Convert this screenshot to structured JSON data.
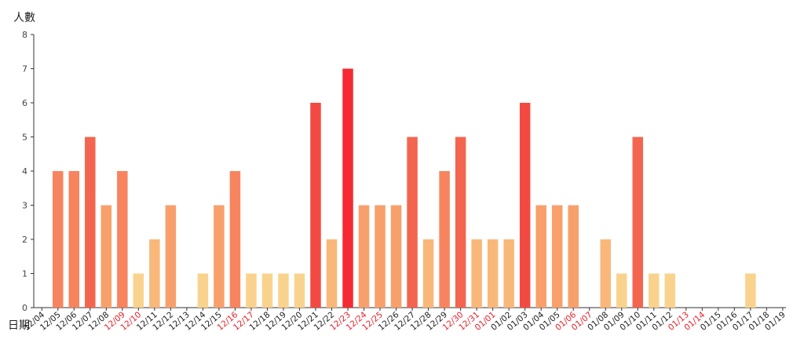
{
  "chart_data": {
    "type": "bar",
    "ylabel": "人數",
    "xlabel": "日期",
    "ylim": [
      0,
      8
    ],
    "yticks": [
      0,
      1,
      2,
      3,
      4,
      5,
      6,
      7,
      8
    ],
    "grid": false,
    "categories": [
      "12/04",
      "12/05",
      "12/06",
      "12/07",
      "12/08",
      "12/09",
      "12/10",
      "12/11",
      "12/12",
      "12/13",
      "12/14",
      "12/15",
      "12/16",
      "12/17",
      "12/18",
      "12/19",
      "12/20",
      "12/21",
      "12/22",
      "12/23",
      "12/24",
      "12/25",
      "12/26",
      "12/27",
      "12/28",
      "12/29",
      "12/30",
      "12/31",
      "01/01",
      "01/02",
      "01/03",
      "01/04",
      "01/05",
      "01/06",
      "01/07",
      "01/08",
      "01/09",
      "01/10",
      "01/11",
      "01/12",
      "01/13",
      "01/14",
      "01/15",
      "01/16",
      "01/17",
      "01/18",
      "01/19"
    ],
    "values": [
      0,
      4,
      4,
      5,
      3,
      4,
      1,
      2,
      3,
      0,
      1,
      3,
      4,
      1,
      1,
      1,
      1,
      6,
      2,
      7,
      3,
      3,
      3,
      5,
      2,
      4,
      5,
      2,
      2,
      2,
      6,
      3,
      3,
      3,
      0,
      2,
      1,
      5,
      1,
      1,
      0,
      0,
      0,
      0,
      1,
      0,
      0
    ],
    "holiday_categories": [
      "12/09",
      "12/10",
      "12/16",
      "12/17",
      "12/23",
      "12/24",
      "12/25",
      "12/30",
      "12/31",
      "01/01",
      "01/06",
      "01/07",
      "01/13",
      "01/14"
    ],
    "colors": {
      "1": "#f9d38e",
      "2": "#f9b87a",
      "3": "#f8a06b",
      "4": "#f7845e",
      "5": "#f4654f",
      "6": "#f24a42",
      "7": "#f52a32",
      "holiday_label": "#e8202a",
      "normal_label": "#222222",
      "axis": "#333333"
    }
  }
}
